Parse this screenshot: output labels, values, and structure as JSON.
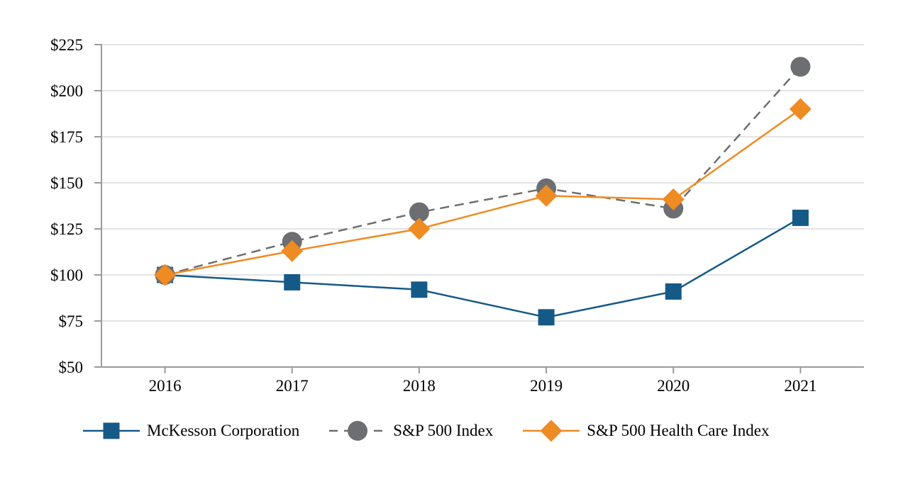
{
  "chart_data": {
    "type": "line",
    "x_labels": [
      "2016",
      "2017",
      "2018",
      "2019",
      "2020",
      "2021"
    ],
    "series": [
      {
        "name": "McKesson Corporation",
        "values": [
          100,
          96,
          92,
          77,
          91,
          131
        ],
        "color": "#155987",
        "marker": "square",
        "line_style": "solid"
      },
      {
        "name": "S&P 500 Index",
        "values": [
          100,
          118,
          134,
          147,
          136,
          213
        ],
        "color": "#6D6E71",
        "marker": "circle",
        "line_style": "dashed"
      },
      {
        "name": "S&P 500 Health Care Index",
        "values": [
          100,
          113,
          125,
          143,
          141,
          190
        ],
        "color": "#EE8B22",
        "marker": "diamond",
        "line_style": "solid"
      }
    ],
    "ylim": [
      50,
      225
    ],
    "y_tick_step": 25,
    "y_tick_labels": [
      "$50",
      "$75",
      "$100",
      "$125",
      "$150",
      "$175",
      "$200",
      "$225"
    ],
    "grid": "horizontal",
    "legend_position": "bottom",
    "colors": {
      "grid": "#DCDCDC",
      "axis": "#9A9A9A",
      "text": "#000000",
      "background": "#FFFFFF"
    }
  }
}
